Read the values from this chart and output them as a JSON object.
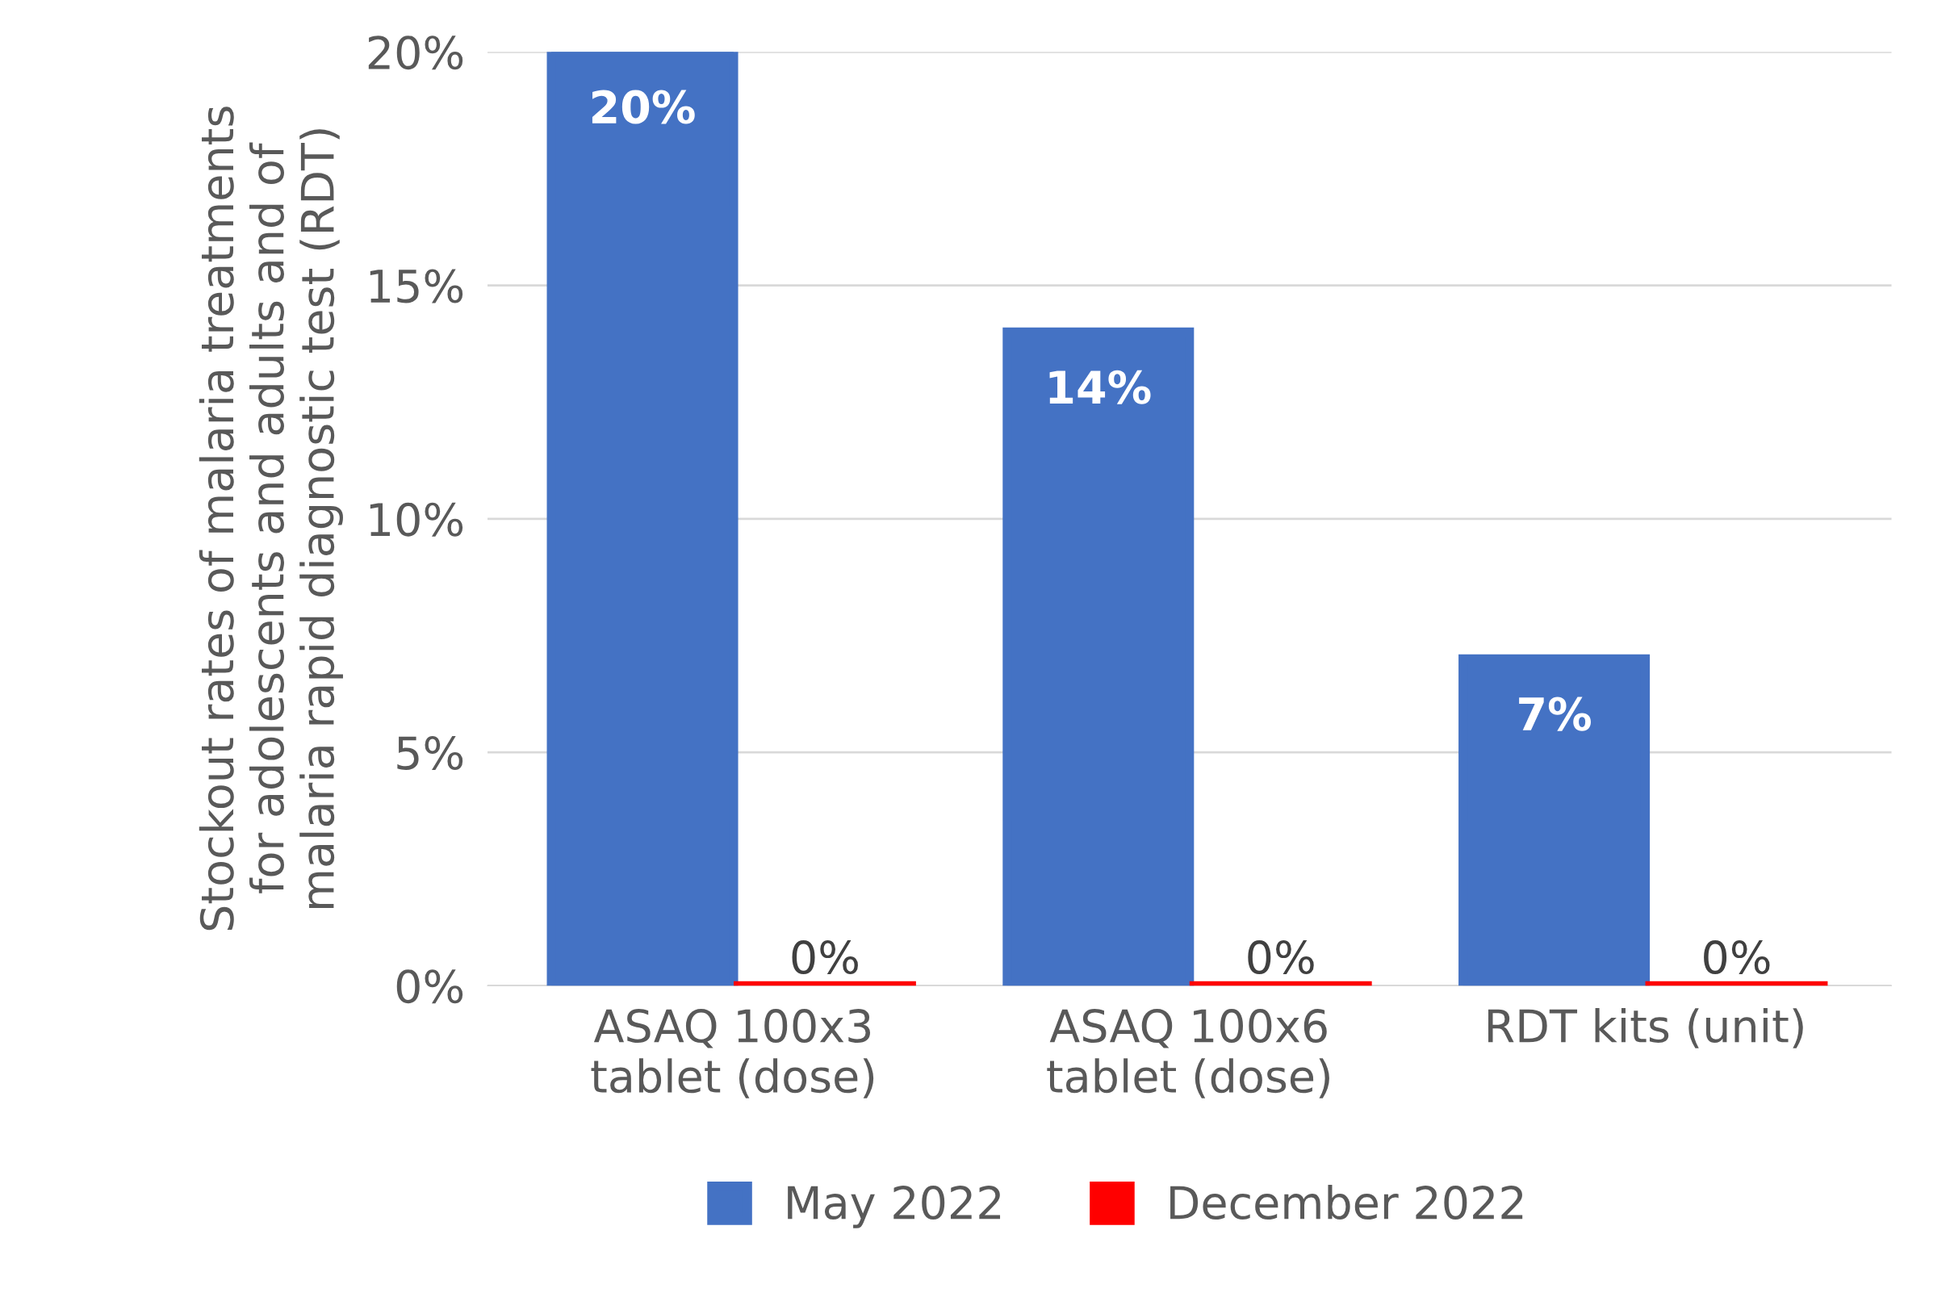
{
  "chart_data": {
    "type": "bar",
    "ylabel": "Stockout rates of malaria treatments\nfor adolescents and adults and of\nmalaria rapid diagnostic test (RDT)",
    "categories": [
      "ASAQ 100x3\ntablet (dose)",
      "ASAQ 100x6\ntablet (dose)",
      "RDT kits (unit)"
    ],
    "series": [
      {
        "name": "May 2022",
        "color": "#4472c4",
        "values": [
          20,
          14,
          7
        ],
        "value_labels": [
          "20%",
          "14%",
          "7%"
        ]
      },
      {
        "name": "December 2022",
        "color": "#ff0000",
        "values": [
          0,
          0,
          0
        ],
        "value_labels": [
          "0%",
          "0%",
          "0%"
        ]
      }
    ],
    "ylim": [
      0,
      20
    ],
    "yticks": [
      {
        "value": 0,
        "label": "0%"
      },
      {
        "value": 5,
        "label": "5%"
      },
      {
        "value": 10,
        "label": "10%"
      },
      {
        "value": 15,
        "label": "15%"
      },
      {
        "value": 20,
        "label": "20%"
      }
    ],
    "grid": "y",
    "legend": "bottom"
  }
}
